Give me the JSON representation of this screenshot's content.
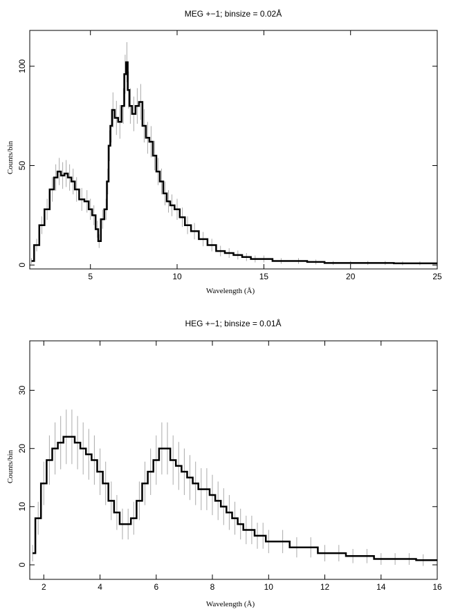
{
  "chart_data": [
    {
      "type": "line",
      "title": "MEG +−1; binsize = 0.02Å",
      "xlabel": "Wavelength (Å)",
      "ylabel": "Counts/bin",
      "xlim": [
        1.5,
        25
      ],
      "ylim": [
        -2,
        118
      ],
      "xticks": [
        "5",
        "10",
        "15",
        "20",
        "25"
      ],
      "yticks": [
        "0",
        "50",
        "100"
      ],
      "grid": false,
      "legend": "none",
      "line_color": "#000000",
      "error_color": "#aaaaaa",
      "series": [
        {
          "x": [
            1.6,
            1.9,
            2.2,
            2.5,
            2.8,
            3.0,
            3.2,
            3.4,
            3.6,
            3.8,
            4.0,
            4.2,
            4.5,
            4.8,
            5.0,
            5.2,
            5.4,
            5.5,
            5.7,
            5.9,
            6.0,
            6.1,
            6.2,
            6.3,
            6.5,
            6.7,
            6.9,
            7.0,
            7.1,
            7.2,
            7.3,
            7.5,
            7.7,
            7.9,
            8.1,
            8.3,
            8.5,
            8.7,
            8.9,
            9.1,
            9.3,
            9.5,
            9.7,
            10.0,
            10.3,
            10.6,
            11.0,
            11.5,
            12.0,
            12.5,
            13.0,
            13.5,
            14.0,
            14.5,
            15.0,
            16.0,
            17.0,
            18.0,
            19.0,
            20.0,
            21.0,
            22.0,
            23.0,
            24.0,
            25.0
          ],
          "y": [
            2,
            10,
            20,
            28,
            38,
            44,
            47,
            45,
            46,
            44,
            42,
            38,
            33,
            32,
            28,
            25,
            18,
            12,
            23,
            28,
            42,
            60,
            70,
            78,
            74,
            72,
            80,
            96,
            102,
            88,
            80,
            76,
            80,
            82,
            70,
            64,
            62,
            55,
            47,
            42,
            36,
            32,
            30,
            28,
            24,
            20,
            17,
            13,
            10,
            7,
            6,
            5,
            4,
            3,
            3,
            2,
            2,
            1.5,
            1,
            1,
            1,
            1,
            0.8,
            0.8,
            0.8
          ]
        }
      ]
    },
    {
      "type": "line",
      "title": "HEG +−1; binsize = 0.01Å",
      "xlabel": "Wavelength (Å)",
      "ylabel": "Counts/bin",
      "xlim": [
        1.5,
        16
      ],
      "ylim": [
        -2.5,
        38.5
      ],
      "xticks": [
        "2",
        "4",
        "6",
        "8",
        "10",
        "12",
        "14",
        "16"
      ],
      "yticks": [
        "0",
        "10",
        "20",
        "30"
      ],
      "grid": false,
      "legend": "none",
      "line_color": "#000000",
      "error_color": "#aaaaaa",
      "series": [
        {
          "x": [
            1.6,
            1.8,
            2.0,
            2.2,
            2.4,
            2.6,
            2.8,
            3.0,
            3.2,
            3.4,
            3.6,
            3.8,
            4.0,
            4.2,
            4.4,
            4.6,
            4.8,
            5.0,
            5.2,
            5.4,
            5.6,
            5.8,
            6.0,
            6.2,
            6.4,
            6.6,
            6.8,
            7.0,
            7.2,
            7.4,
            7.6,
            7.8,
            8.0,
            8.2,
            8.4,
            8.6,
            8.8,
            9.0,
            9.2,
            9.4,
            9.6,
            9.8,
            10.0,
            10.5,
            11.0,
            11.5,
            12.0,
            12.5,
            13.0,
            13.5,
            14.0,
            14.5,
            15.0,
            15.5,
            16.0
          ],
          "y": [
            2,
            8,
            14,
            18,
            20,
            21,
            22,
            22,
            21,
            20,
            19,
            18,
            16,
            14,
            11,
            9,
            7,
            7,
            8,
            11,
            14,
            16,
            18,
            20,
            20,
            18,
            17,
            16,
            15,
            14,
            13,
            13,
            12,
            11,
            10,
            9,
            8,
            7,
            6,
            6,
            5,
            5,
            4,
            4,
            3,
            3,
            2,
            2,
            1.5,
            1.5,
            1,
            1,
            1,
            0.8,
            0.8
          ]
        }
      ]
    }
  ]
}
